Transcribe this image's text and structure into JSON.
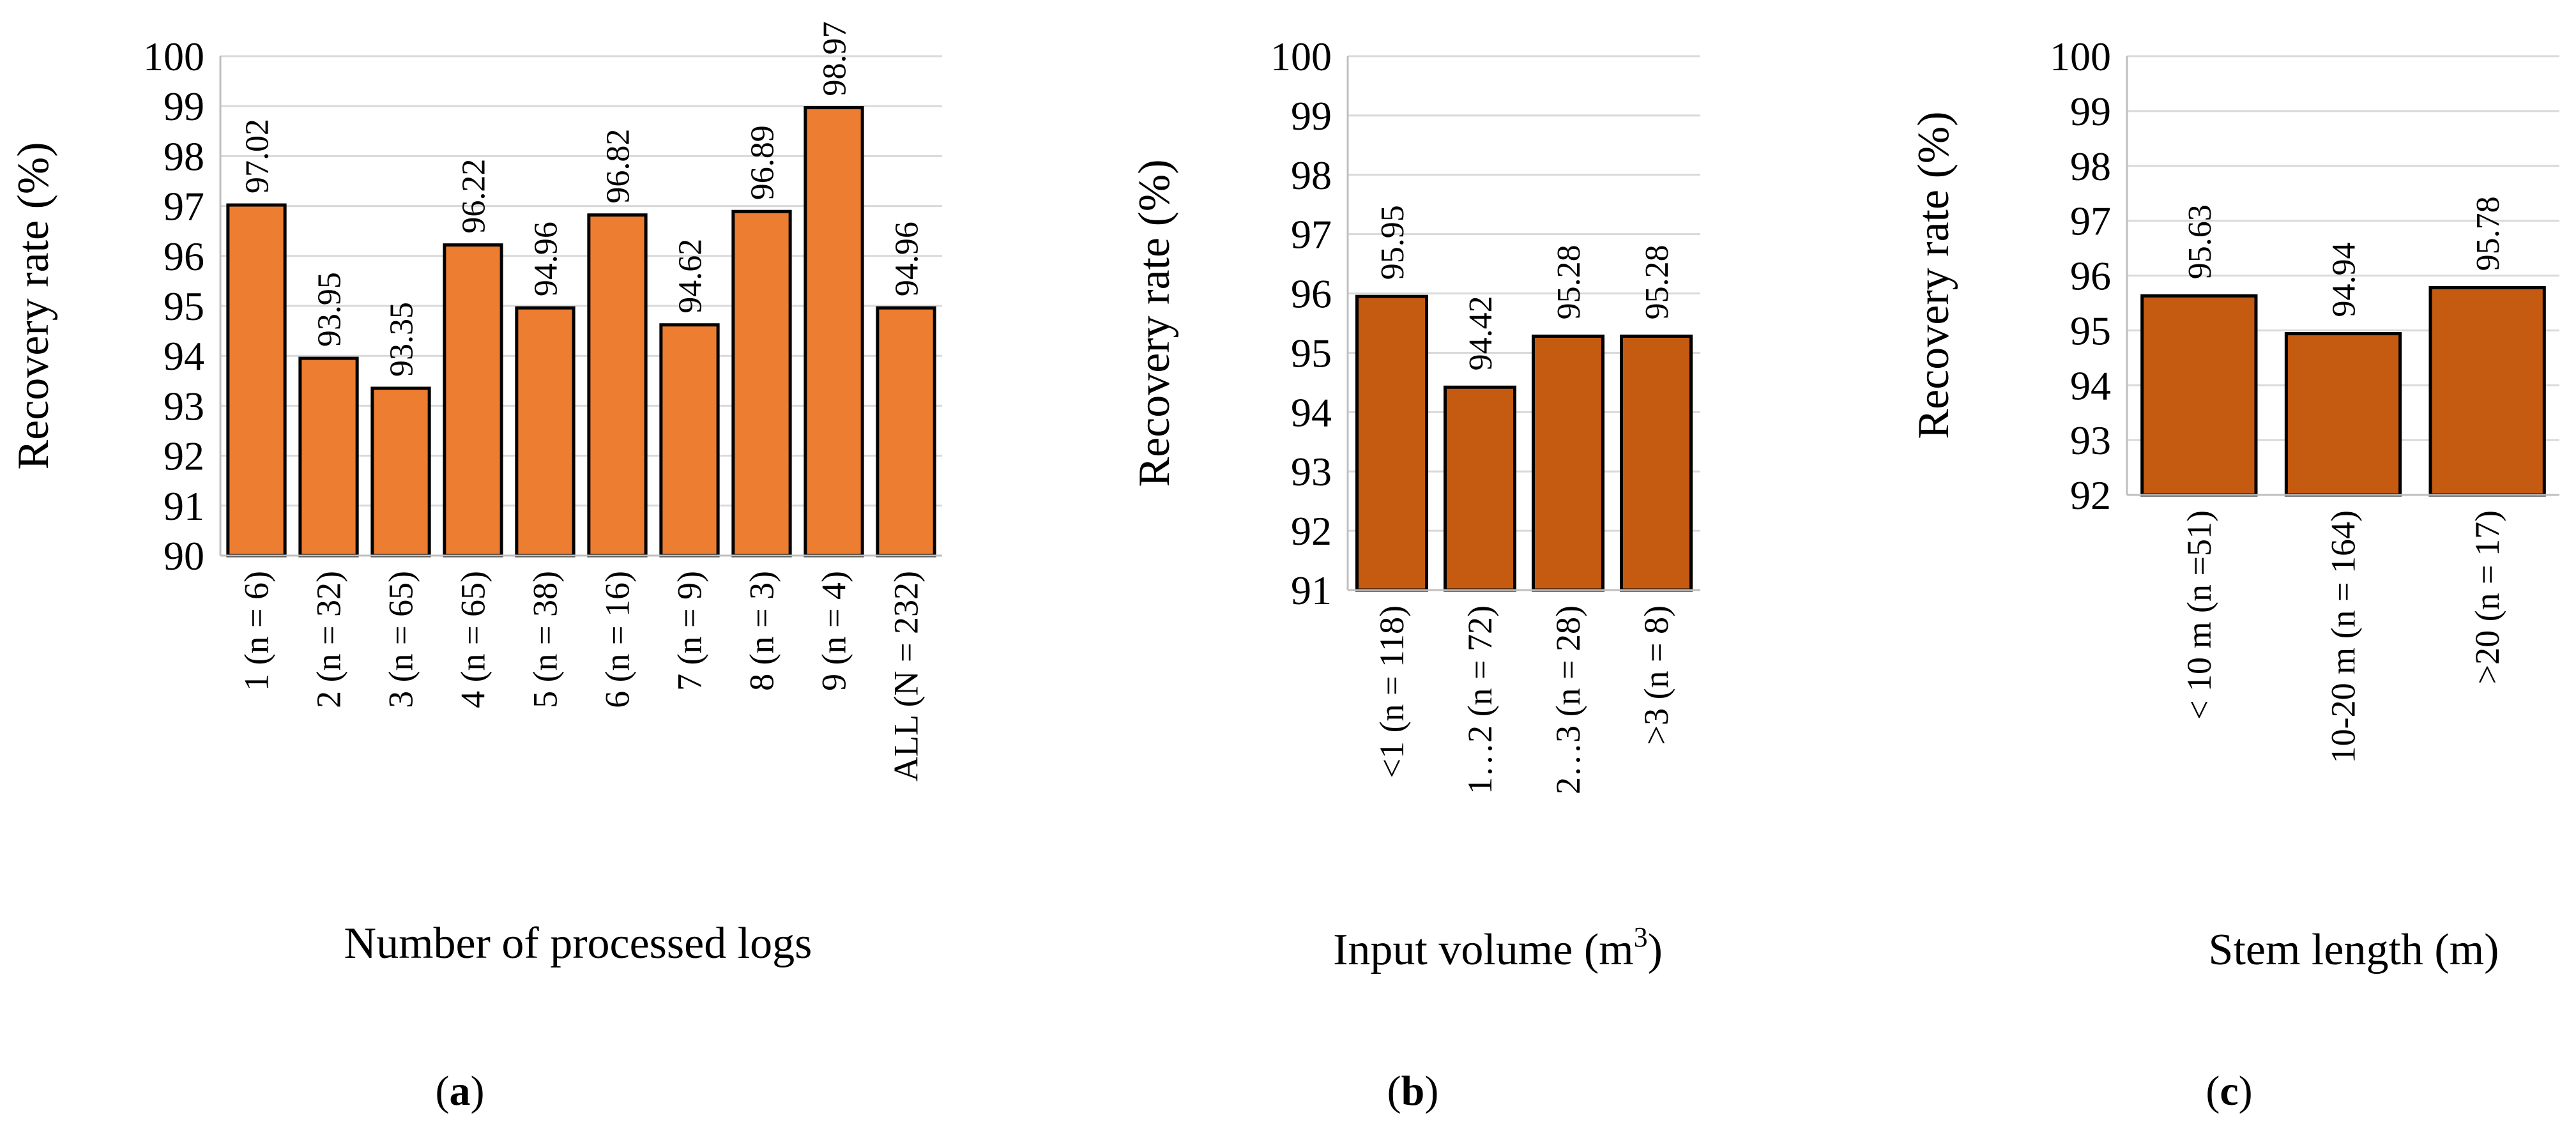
{
  "chart_data": [
    {
      "type": "bar",
      "panel_label": "a",
      "title": "",
      "xlabel": "Number of processed logs",
      "ylabel": "Recovery rate (%)",
      "ylim": [
        90,
        100
      ],
      "yticks": [
        90,
        91,
        92,
        93,
        94,
        95,
        96,
        97,
        98,
        99,
        100
      ],
      "grid": true,
      "bar_color": "#ED7D31",
      "categories": [
        "1 (n = 6)",
        "2 (n = 32)",
        "3 (n = 65)",
        "4 (n = 65)",
        "5 (n = 38)",
        "6 (n = 16)",
        "7 (n = 9)",
        "8 (n = 3)",
        "9 (n = 4)",
        "ALL (N = 232)"
      ],
      "values": [
        97.02,
        93.95,
        93.35,
        96.22,
        94.96,
        96.82,
        94.62,
        96.89,
        98.97,
        94.96
      ],
      "value_labels": [
        "97.02",
        "93.95",
        "93.35",
        "96.22",
        "94.96",
        "96.82",
        "94.62",
        "96.89",
        "98.97",
        "94.96"
      ]
    },
    {
      "type": "bar",
      "panel_label": "b",
      "title": "",
      "xlabel": "Input volume (m",
      "xlabel_sup": "3",
      "xlabel_end": ")",
      "ylabel": "Recovery rate (%)",
      "ylim": [
        91,
        100
      ],
      "yticks": [
        91,
        92,
        93,
        94,
        95,
        96,
        97,
        98,
        99,
        100
      ],
      "grid": true,
      "bar_color": "#C55A11",
      "categories": [
        "<1 (n = 118)",
        "1…2 (n = 72)",
        "2…3 (n = 28)",
        ">3 (n = 8)"
      ],
      "values": [
        95.95,
        94.42,
        95.28,
        95.28
      ],
      "value_labels": [
        "95.95",
        "94.42",
        "95.28",
        "95.28"
      ]
    },
    {
      "type": "bar",
      "panel_label": "c",
      "title": "",
      "xlabel": "Stem length (m)",
      "ylabel": "Recovery rate (%)",
      "ylim": [
        92,
        100
      ],
      "yticks": [
        92,
        93,
        94,
        95,
        96,
        97,
        98,
        99,
        100
      ],
      "grid": true,
      "bar_color": "#C55A11",
      "categories": [
        "< 10 m (n =51)",
        "10-20 m (n = 164)",
        ">20 (n = 17)"
      ],
      "values": [
        95.63,
        94.94,
        95.78
      ],
      "value_labels": [
        "95.63",
        "94.94",
        "95.78"
      ]
    }
  ]
}
